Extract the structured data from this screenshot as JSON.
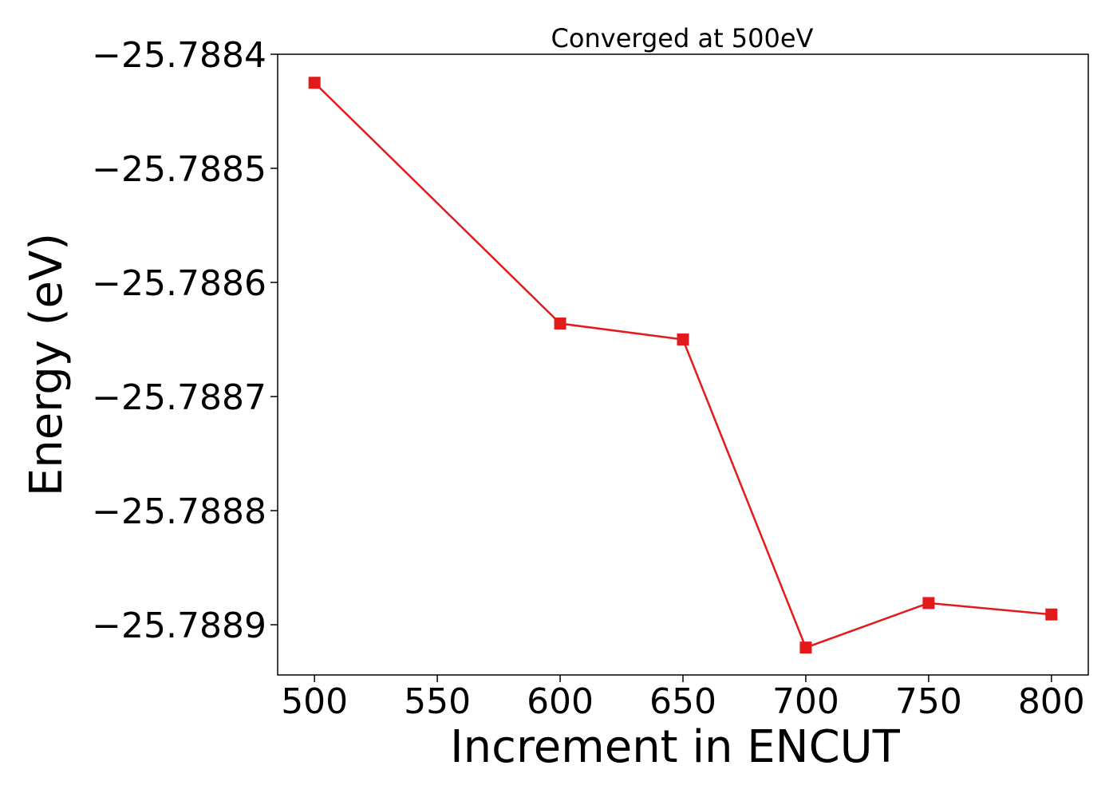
{
  "chart_data": {
    "type": "line",
    "title": "Converged at 500eV",
    "xlabel": "Increment in ENCUT",
    "ylabel": "Energy (eV)",
    "x": [
      500,
      600,
      650,
      700,
      750,
      800
    ],
    "series": [
      {
        "values": [
          -25.788425,
          -25.788636,
          -25.78865,
          -25.78892,
          -25.788881,
          -25.788891
        ],
        "color": "#e31a1c",
        "marker": "square"
      }
    ],
    "xlim": [
      485,
      815
    ],
    "ylim": [
      -25.788944,
      -25.7884
    ],
    "xticks": [
      500,
      550,
      600,
      650,
      700,
      750,
      800
    ],
    "xtick_labels": [
      "500",
      "550",
      "600",
      "650",
      "700",
      "750",
      "800"
    ],
    "yticks": [
      -25.7884,
      -25.7885,
      -25.7886,
      -25.7887,
      -25.7888,
      -25.7889
    ],
    "ytick_labels": [
      "−25.7884",
      "−25.7885",
      "−25.7886",
      "−25.7887",
      "−25.7888",
      "−25.7889"
    ],
    "grid": false,
    "legend": "none"
  }
}
